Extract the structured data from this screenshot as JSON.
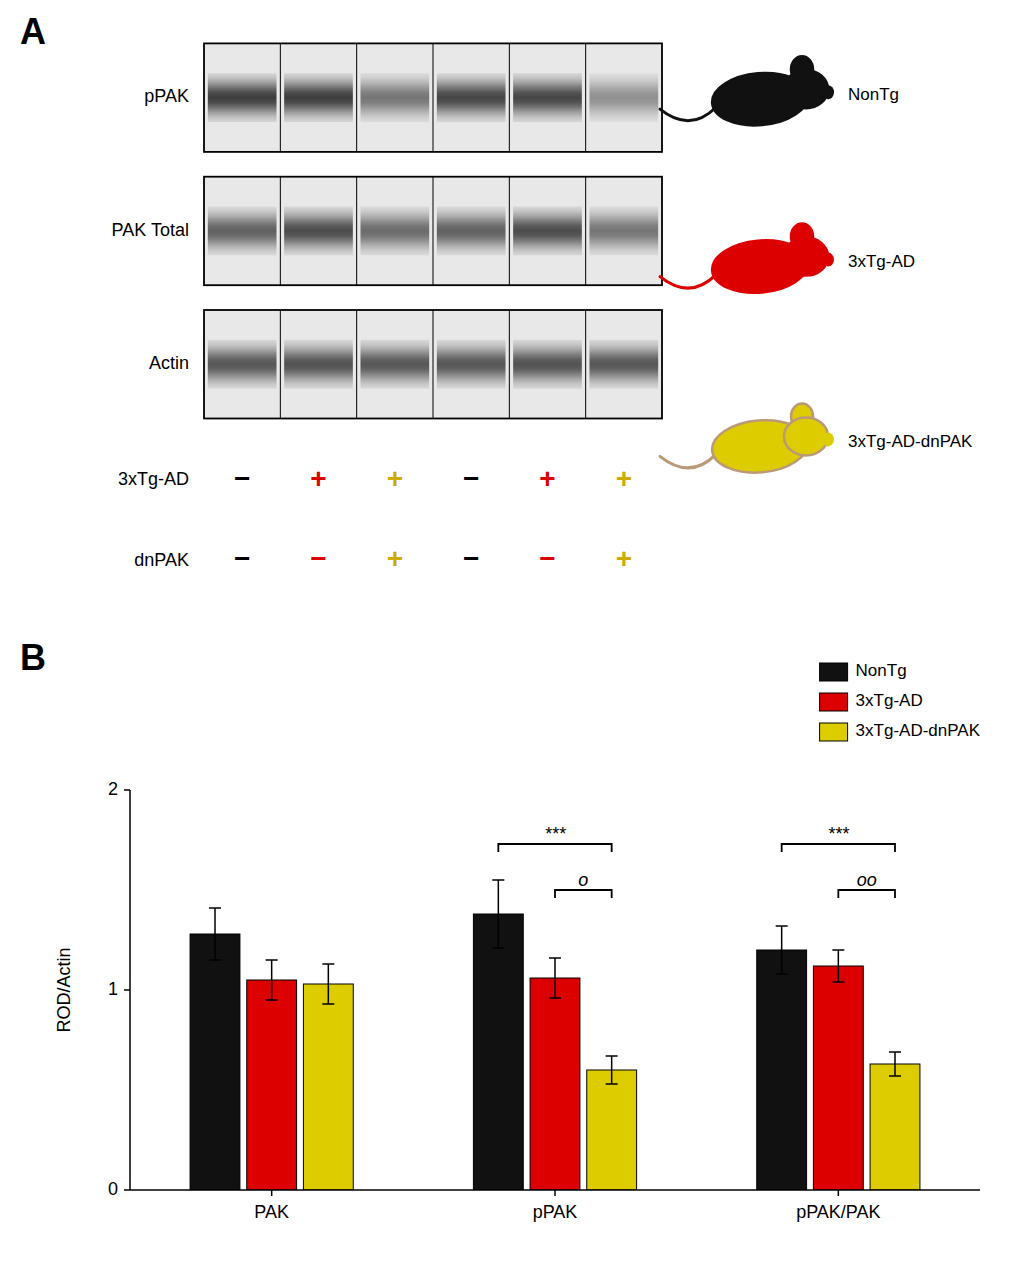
{
  "chart_data": [
    {
      "type": "heatmap",
      "title": "A",
      "categories": [
        null,
        null,
        null,
        null,
        null,
        null
      ],
      "series": [
        {
          "name": "pPAK",
          "values": [
            0.82,
            0.82,
            0.55,
            0.78,
            0.78,
            0.42
          ]
        },
        {
          "name": "PAK Total",
          "values": [
            0.65,
            0.75,
            0.6,
            0.65,
            0.75,
            0.55
          ]
        },
        {
          "name": "Actin",
          "values": [
            0.7,
            0.72,
            0.7,
            0.7,
            0.72,
            0.7
          ]
        }
      ],
      "annotations": [
        {
          "label": "3xTg-AD",
          "signs": [
            "−",
            "+",
            "+",
            "−",
            "+",
            "+"
          ],
          "colors": [
            "black",
            "#dd0000",
            "#ccaa00",
            "black",
            "#dd0000",
            "#ccaa00"
          ]
        },
        {
          "label": "dnPAK",
          "signs": [
            "−",
            "−",
            "+",
            "−",
            "−",
            "+"
          ],
          "colors": [
            "black",
            "#dd0000",
            "#ccaa00",
            "black",
            "#dd0000",
            "#ccaa00"
          ]
        }
      ],
      "mice": [
        {
          "label": "NonTg",
          "color": "#111111",
          "tail_color": "#111111",
          "outline_color": "#111111"
        },
        {
          "label": "3xTg-AD",
          "color": "#dd0000",
          "tail_color": "#dd0000",
          "outline_color": "#dd0000"
        },
        {
          "label": "3xTg-AD-dnPAK",
          "color": "#ddcc00",
          "tail_color": "#bb9977",
          "outline_color": "#bb9977"
        }
      ]
    },
    {
      "type": "bar",
      "title": "B",
      "categories": [
        "PAK",
        "pPAK",
        "pPAK/PAK"
      ],
      "series": [
        {
          "name": "NonTg",
          "color": "#111111",
          "values": [
            1.28,
            1.38,
            1.2
          ],
          "errors": [
            0.13,
            0.17,
            0.12
          ]
        },
        {
          "name": "3xTg-AD",
          "color": "#dd0000",
          "values": [
            1.05,
            1.06,
            1.12
          ],
          "errors": [
            0.1,
            0.1,
            0.08
          ]
        },
        {
          "name": "3xTg-AD-dnPAK",
          "color": "#ddcc00",
          "values": [
            1.03,
            0.6,
            0.63
          ],
          "errors": [
            0.1,
            0.07,
            0.06
          ]
        }
      ],
      "ylabel": "ROD/Actin",
      "ylim": [
        0,
        2.0
      ],
      "yticks": [
        0,
        1,
        2
      ],
      "grid": false,
      "legend": "upper right",
      "annotations": [
        {
          "text": "***",
          "category": "pPAK",
          "series": [
            "NonTg",
            "3xTg-AD-dnPAK"
          ],
          "y": 1.73
        },
        {
          "text": "o",
          "category": "pPAK",
          "series": [
            "3xTg-AD",
            "3xTg-AD-dnPAK"
          ],
          "y": 1.5
        },
        {
          "text": "***",
          "category": "pPAK/PAK",
          "series": [
            "NonTg",
            "3xTg-AD-dnPAK"
          ],
          "y": 1.73
        },
        {
          "text": "oo",
          "category": "pPAK/PAK",
          "series": [
            "3xTg-AD",
            "3xTg-AD-dnPAK"
          ],
          "y": 1.5
        }
      ]
    }
  ]
}
